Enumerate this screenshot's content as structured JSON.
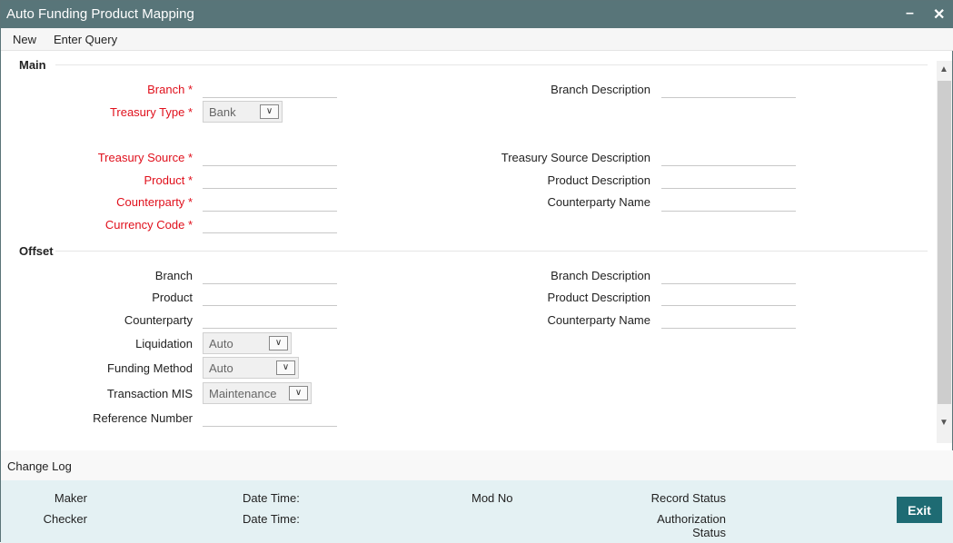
{
  "window": {
    "title": "Auto Funding Product Mapping",
    "minimize": "–",
    "close": "✕"
  },
  "toolbar": {
    "new": "New",
    "enter_query": "Enter Query"
  },
  "main": {
    "title": "Main",
    "branch": "Branch",
    "treasury_type": "Treasury Type",
    "treasury_type_value": "Bank",
    "treasury_source": "Treasury Source",
    "product": "Product",
    "counterparty": "Counterparty",
    "currency_code": "Currency Code",
    "required": "*",
    "branch_description": "Branch Description",
    "treasury_source_description": "Treasury Source Description",
    "product_description": "Product Description",
    "counterparty_name": "Counterparty Name"
  },
  "offset": {
    "title": "Offset",
    "branch": "Branch",
    "product": "Product",
    "counterparty": "Counterparty",
    "liquidation": "Liquidation",
    "liquidation_value": "Auto",
    "funding_method": "Funding Method",
    "funding_method_value": "Auto",
    "transaction_mis": "Transaction MIS",
    "transaction_mis_value": "Maintenance",
    "reference_number": "Reference Number",
    "branch_description": "Branch Description",
    "product_description": "Product Description",
    "counterparty_name": "Counterparty Name"
  },
  "footer": {
    "change_log": "Change Log",
    "maker": "Maker",
    "checker": "Checker",
    "date_time": "Date Time:",
    "mod_no": "Mod No",
    "record_status": "Record Status",
    "authorization": "Authorization",
    "status": "Status",
    "exit": "Exit"
  },
  "icons": {
    "dropdown": "chevron-down-icon",
    "scroll_up": "▲",
    "scroll_down": "▼"
  },
  "colors": {
    "titlebar": "#587579",
    "required": "#e0101c",
    "exit_button": "#1e6b73",
    "footer": "#e4f1f3"
  }
}
